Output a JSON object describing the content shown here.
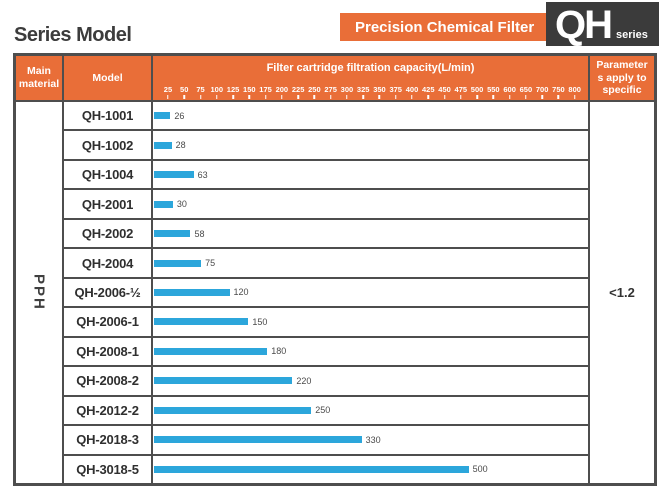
{
  "page": {
    "title": "Series Model",
    "badge": "Precision Chemical Filter",
    "logo_main": "QH",
    "logo_sub": "series"
  },
  "table": {
    "headers": {
      "main_material": "Main material",
      "model": "Model",
      "capacity": "Filter cartridge filtration capacity(L/min)",
      "parameters_lines": [
        "Parameter",
        "s apply to",
        "specific"
      ]
    },
    "main_material_value": "PPH",
    "parameters_value": "<1.2"
  },
  "chart_data": {
    "type": "bar",
    "title": "Filter cartridge filtration capacity(L/min)",
    "categories": [
      "QH-1001",
      "QH-1002",
      "QH-1004",
      "QH-2001",
      "QH-2002",
      "QH-2004",
      "QH-2006-½",
      "QH-2006-1",
      "QH-2008-1",
      "QH-2008-2",
      "QH-2012-2",
      "QH-2018-3",
      "QH-3018-5"
    ],
    "values": [
      26,
      28,
      63,
      30,
      58,
      75,
      120,
      150,
      180,
      220,
      250,
      330,
      500
    ],
    "axis_ticks": [
      25,
      50,
      75,
      100,
      125,
      150,
      175,
      200,
      225,
      250,
      275,
      300,
      325,
      350,
      375,
      400,
      425,
      450,
      475,
      500,
      550,
      600,
      650,
      700,
      750,
      800
    ],
    "xlim": [
      0,
      800
    ],
    "axis_note": "ticks equally spaced: 25-unit steps up to 500, then 50-unit steps to 800",
    "value_labels": true,
    "legend": false,
    "grid": false,
    "bar_color": "#2CA6DB"
  },
  "colors": {
    "orange": "#E96E38",
    "dark": "#3B3B3B",
    "blue": "#2CA6DB",
    "border": "#4E4E4E",
    "text": "#333333"
  }
}
